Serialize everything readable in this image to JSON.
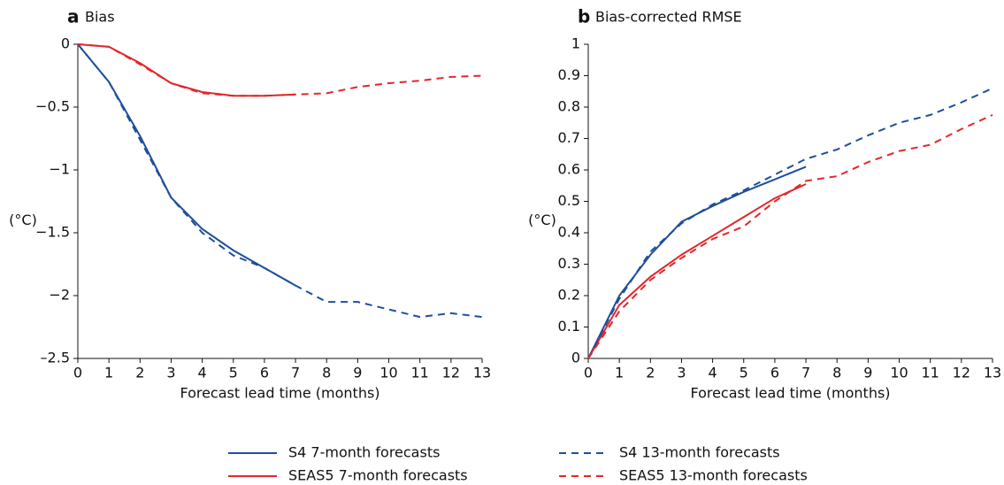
{
  "chart_data": [
    {
      "type": "line",
      "label": "a",
      "title": "Bias",
      "ylabel": "(°C)",
      "xlabel": "Forecast lead time (months)",
      "xlim": [
        0,
        13
      ],
      "xticks": [
        0,
        1,
        2,
        3,
        4,
        5,
        6,
        7,
        8,
        9,
        10,
        11,
        12,
        13
      ],
      "ylim": [
        -2.5,
        0
      ],
      "yticks": [
        {
          "value": -2.5,
          "label": "–2.5"
        },
        {
          "value": -2,
          "label": "−2"
        },
        {
          "value": -1.5,
          "label": "−1.5"
        },
        {
          "value": -1,
          "label": "−1"
        },
        {
          "value": -0.5,
          "label": "−0.5"
        },
        0
      ],
      "series": [
        {
          "name": "S4 7-month forecasts",
          "color": "#1f4e9c",
          "dash": false,
          "x": [
            0,
            1,
            2,
            3,
            4,
            5,
            6,
            7
          ],
          "values": [
            0,
            -0.3,
            -0.73,
            -1.22,
            -1.47,
            -1.64,
            -1.78,
            -1.92
          ]
        },
        {
          "name": "SEAS5 7-month forecasts",
          "color": "#e3262b",
          "dash": false,
          "x": [
            0,
            1,
            2,
            3,
            4,
            5,
            6,
            7
          ],
          "values": [
            0,
            -0.02,
            -0.15,
            -0.31,
            -0.38,
            -0.41,
            -0.41,
            -0.4
          ]
        },
        {
          "name": "S4 13-month forecasts",
          "color": "#1f4e9c",
          "dash": true,
          "x": [
            0,
            1,
            2,
            3,
            4,
            5,
            6,
            7,
            8,
            9,
            10,
            11,
            12,
            13
          ],
          "values": [
            0,
            -0.3,
            -0.76,
            -1.22,
            -1.5,
            -1.68,
            -1.78,
            -1.92,
            -2.05,
            -2.05,
            -2.11,
            -2.17,
            -2.14,
            -2.17
          ]
        },
        {
          "name": "SEAS5 13-month forecasts",
          "color": "#e3262b",
          "dash": true,
          "x": [
            0,
            1,
            2,
            3,
            4,
            5,
            6,
            7,
            8,
            9,
            10,
            11,
            12,
            13
          ],
          "values": [
            0,
            -0.02,
            -0.16,
            -0.31,
            -0.39,
            -0.41,
            -0.41,
            -0.4,
            -0.39,
            -0.34,
            -0.31,
            -0.29,
            -0.26,
            -0.25
          ]
        }
      ]
    },
    {
      "type": "line",
      "label": "b",
      "title": "Bias-corrected RMSE",
      "ylabel": "(°C)",
      "xlabel": "Forecast lead time (months)",
      "xlim": [
        0,
        13
      ],
      "xticks": [
        0,
        1,
        2,
        3,
        4,
        5,
        6,
        7,
        8,
        9,
        10,
        11,
        12,
        13
      ],
      "ylim": [
        0,
        1
      ],
      "yticks": [
        0,
        0.1,
        0.2,
        0.3,
        0.4,
        0.5,
        0.6,
        0.7,
        0.8,
        0.9,
        1
      ],
      "series": [
        {
          "color": "#1f4e9c",
          "dash": false,
          "x": [
            0,
            1,
            2,
            3,
            4,
            5,
            6,
            7
          ],
          "values": [
            0,
            0.2,
            0.33,
            0.435,
            0.485,
            0.53,
            0.57,
            0.61
          ]
        },
        {
          "color": "#e3262b",
          "dash": false,
          "x": [
            0,
            1,
            2,
            3,
            4,
            5,
            6,
            7
          ],
          "values": [
            0,
            0.17,
            0.26,
            0.33,
            0.39,
            0.45,
            0.51,
            0.555
          ]
        },
        {
          "color": "#1f4e9c",
          "dash": true,
          "x": [
            0,
            1,
            2,
            3,
            4,
            5,
            6,
            7,
            8,
            9,
            10,
            11,
            12,
            13
          ],
          "values": [
            0,
            0.19,
            0.34,
            0.43,
            0.49,
            0.535,
            0.585,
            0.635,
            0.665,
            0.71,
            0.75,
            0.775,
            0.815,
            0.86
          ]
        },
        {
          "color": "#e3262b",
          "dash": true,
          "x": [
            0,
            1,
            2,
            3,
            4,
            5,
            6,
            7,
            8,
            9,
            10,
            11,
            12,
            13
          ],
          "values": [
            0,
            0.15,
            0.25,
            0.32,
            0.38,
            0.42,
            0.5,
            0.565,
            0.58,
            0.625,
            0.66,
            0.68,
            0.73,
            0.775
          ]
        }
      ]
    }
  ]
}
